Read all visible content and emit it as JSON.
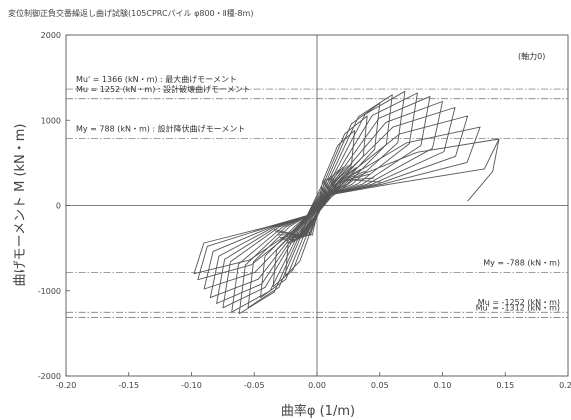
{
  "chart_data": {
    "type": "line",
    "title": "変位制御正負交番繰返し曲げ試験(105CPRCパイル φ800・Ⅱ種-8m)",
    "xlabel": "曲率φ (1/m)",
    "ylabel": "曲げモーメント M (kN・m)",
    "xlim": [
      -0.2,
      0.2
    ],
    "ylim": [
      -2000,
      2000
    ],
    "x_ticks": [
      "-0.20",
      "-0.15",
      "-0.10",
      "-0.05",
      "0.00",
      "0.05",
      "0.10",
      "0.15",
      "0.20"
    ],
    "x_tick_values": [
      -0.2,
      -0.15,
      -0.1,
      -0.05,
      0.0,
      0.05,
      0.1,
      0.15,
      0.2
    ],
    "y_ticks": [
      "2000",
      "1000",
      "0",
      "-1000",
      "-2000"
    ],
    "y_tick_values": [
      2000,
      1000,
      0,
      -1000,
      -2000
    ],
    "note": "(軸力0)",
    "reference_lines": [
      {
        "value": 1366,
        "label": "Mu' = 1366 (kN・m) : 最大曲げモーメント",
        "side": "left"
      },
      {
        "value": 1252,
        "label": "Mu = 1252 (kN・m) : 設計破壊曲げモーメント",
        "side": "left"
      },
      {
        "value": 788,
        "label": "My =  788 (kN・m) : 設計降伏曲げモーメント",
        "side": "left"
      },
      {
        "value": -788,
        "label": "My =  -788 (kN・m)",
        "side": "right"
      },
      {
        "value": -1252,
        "label": "Mu = -1252 (kN・m)",
        "side": "right"
      },
      {
        "value": -1312,
        "label": "Mu' = -1312 (kN・m)",
        "side": "right"
      }
    ],
    "series": [
      {
        "cycles": [
          {
            "xmax": 0.03,
            "xmin": -0.025,
            "mpos": 880,
            "mneg": -820
          },
          {
            "xmax": 0.04,
            "xmin": -0.035,
            "mpos": 1050,
            "mneg": -950
          },
          {
            "xmax": 0.05,
            "xmin": -0.045,
            "mpos": 1200,
            "mneg": -1080
          },
          {
            "xmax": 0.06,
            "xmin": -0.055,
            "mpos": 1300,
            "mneg": -1200
          },
          {
            "xmax": 0.07,
            "xmin": -0.062,
            "mpos": 1340,
            "mneg": -1270
          },
          {
            "xmax": 0.08,
            "xmin": -0.068,
            "mpos": 1320,
            "mneg": -1250
          },
          {
            "xmax": 0.09,
            "xmin": -0.075,
            "mpos": 1280,
            "mneg": -1200
          },
          {
            "xmax": 0.1,
            "xmin": -0.08,
            "mpos": 1220,
            "mneg": -1150
          },
          {
            "xmax": 0.11,
            "xmin": -0.085,
            "mpos": 1150,
            "mneg": -1080
          },
          {
            "xmax": 0.12,
            "xmin": -0.09,
            "mpos": 1050,
            "mneg": -980
          },
          {
            "xmax": 0.13,
            "xmin": -0.095,
            "mpos": 920,
            "mneg": -870
          },
          {
            "xmax": 0.145,
            "xmin": -0.098,
            "mpos": 780,
            "mneg": -800
          }
        ]
      }
    ]
  }
}
